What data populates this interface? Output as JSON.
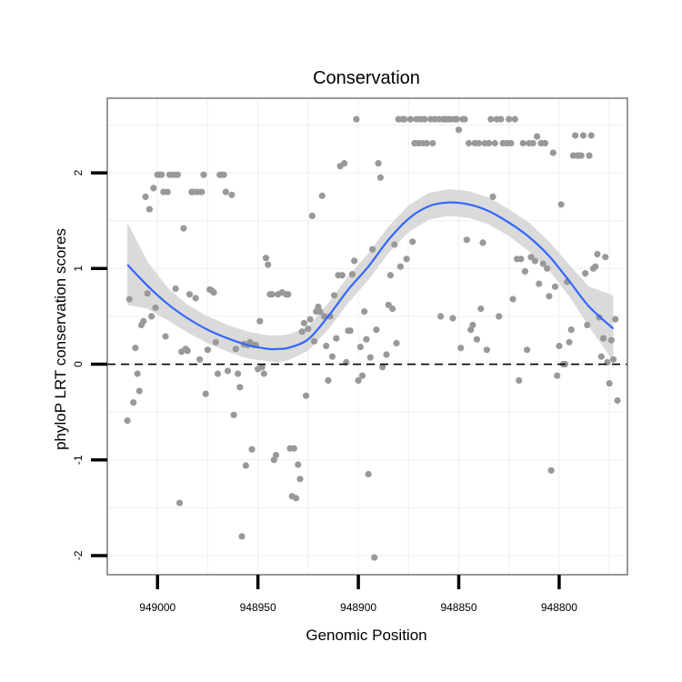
{
  "chart_data": {
    "type": "scatter",
    "title": "Conservation",
    "xlabel": "Genomic Position",
    "ylabel": "phyloP LRT conservation scores",
    "x_reversed": true,
    "xlim": [
      949025,
      948766
    ],
    "ylim": [
      -2.2,
      2.78
    ],
    "x_ticks": [
      949000,
      948950,
      948900,
      948850,
      948800
    ],
    "y_ticks": [
      -2,
      -1,
      0,
      1,
      2
    ],
    "grid": true,
    "reference_line_y": 0,
    "colors": {
      "points": "#999999",
      "smooth": "#3366ff",
      "ribbon": "#d3d3d3",
      "grid": "#f2f2f2",
      "panel_border": "#7f7f7f"
    },
    "points": [
      [
        949015,
        -0.59
      ],
      [
        949014,
        0.68
      ],
      [
        949012,
        -0.4
      ],
      [
        949011,
        0.17
      ],
      [
        949010,
        -0.1
      ],
      [
        949009,
        -0.28
      ],
      [
        949008,
        0.41
      ],
      [
        949007,
        0.45
      ],
      [
        949006,
        1.75
      ],
      [
        949005,
        0.74
      ],
      [
        949004,
        1.62
      ],
      [
        949003,
        0.5
      ],
      [
        949002,
        1.84
      ],
      [
        949001,
        0.59
      ],
      [
        949000,
        1.98
      ],
      [
        948999,
        1.98
      ],
      [
        948998,
        1.98
      ],
      [
        948997,
        1.8
      ],
      [
        948996,
        0.29
      ],
      [
        948995,
        1.8
      ],
      [
        948994,
        1.98
      ],
      [
        948992,
        1.98
      ],
      [
        948991,
        0.79
      ],
      [
        948990,
        1.98
      ],
      [
        948989,
        -1.45
      ],
      [
        948988,
        0.13
      ],
      [
        948987,
        1.42
      ],
      [
        948986,
        0.16
      ],
      [
        948985,
        0.14
      ],
      [
        948984,
        0.73
      ],
      [
        948983,
        1.8
      ],
      [
        948982,
        1.8
      ],
      [
        948981,
        0.69
      ],
      [
        948980,
        1.8
      ],
      [
        948979,
        0.05
      ],
      [
        948978,
        1.8
      ],
      [
        948977,
        1.98
      ],
      [
        948976,
        -0.31
      ],
      [
        948975,
        0.15
      ],
      [
        948974,
        0.78
      ],
      [
        948973,
        0.77
      ],
      [
        948972,
        0.75
      ],
      [
        948971,
        0.23
      ],
      [
        948970,
        -0.1
      ],
      [
        948969,
        1.98
      ],
      [
        948968,
        1.98
      ],
      [
        948967,
        1.98
      ],
      [
        948966,
        1.8
      ],
      [
        948965,
        -0.07
      ],
      [
        948963,
        1.77
      ],
      [
        948962,
        -0.53
      ],
      [
        948961,
        0.16
      ],
      [
        948960,
        -0.1
      ],
      [
        948959,
        -0.24
      ],
      [
        948958,
        -1.8
      ],
      [
        948957,
        0.21
      ],
      [
        948956,
        -1.06
      ],
      [
        948955,
        0.2
      ],
      [
        948954,
        0.23
      ],
      [
        948953,
        -0.89
      ],
      [
        948952,
        0.2
      ],
      [
        948951,
        0.2
      ],
      [
        948950,
        -0.05
      ],
      [
        948949,
        0.45
      ],
      [
        948948,
        -0.03
      ],
      [
        948947,
        -0.1
      ],
      [
        948946,
        1.11
      ],
      [
        948945,
        1.04
      ],
      [
        948944,
        0.73
      ],
      [
        948943,
        0.73
      ],
      [
        948942,
        -1.0
      ],
      [
        948941,
        -0.95
      ],
      [
        948940,
        0.73
      ],
      [
        948938,
        0.75
      ],
      [
        948936,
        0.73
      ],
      [
        948935,
        0.73
      ],
      [
        948934,
        -0.88
      ],
      [
        948933,
        -1.38
      ],
      [
        948932,
        -0.88
      ],
      [
        948931,
        -1.4
      ],
      [
        948930,
        -1.05
      ],
      [
        948929,
        -1.2
      ],
      [
        948928,
        0.34
      ],
      [
        948927,
        0.43
      ],
      [
        948926,
        -0.33
      ],
      [
        948925,
        0.37
      ],
      [
        948924,
        0.47
      ],
      [
        948923,
        1.55
      ],
      [
        948922,
        0.24
      ],
      [
        948921,
        0.55
      ],
      [
        948920,
        0.6
      ],
      [
        948919,
        0.55
      ],
      [
        948918,
        1.76
      ],
      [
        948917,
        0.5
      ],
      [
        948916,
        0.19
      ],
      [
        948915,
        -0.17
      ],
      [
        948914,
        0.5
      ],
      [
        948913,
        0.08
      ],
      [
        948912,
        0.72
      ],
      [
        948911,
        0.27
      ],
      [
        948910,
        0.93
      ],
      [
        948909,
        2.07
      ],
      [
        948908,
        0.93
      ],
      [
        948907,
        2.1
      ],
      [
        948906,
        0.02
      ],
      [
        948905,
        0.35
      ],
      [
        948904,
        0.35
      ],
      [
        948903,
        0.94
      ],
      [
        948902,
        1.08
      ],
      [
        948901,
        2.56
      ],
      [
        948900,
        -0.17
      ],
      [
        948899,
        0.18
      ],
      [
        948898,
        -0.12
      ],
      [
        948897,
        0.55
      ],
      [
        948896,
        0.26
      ],
      [
        948895,
        -1.15
      ],
      [
        948894,
        0.07
      ],
      [
        948893,
        1.2
      ],
      [
        948892,
        -2.02
      ],
      [
        948891,
        0.36
      ],
      [
        948890,
        2.1
      ],
      [
        948889,
        1.95
      ],
      [
        948888,
        -0.03
      ],
      [
        948886,
        0.1
      ],
      [
        948885,
        0.62
      ],
      [
        948884,
        0.93
      ],
      [
        948883,
        0.58
      ],
      [
        948882,
        1.25
      ],
      [
        948881,
        0.22
      ],
      [
        948880,
        2.56
      ],
      [
        948879,
        1.02
      ],
      [
        948878,
        2.56
      ],
      [
        948877,
        2.56
      ],
      [
        948876,
        1.1
      ],
      [
        948874,
        2.56
      ],
      [
        948873,
        1.28
      ],
      [
        948872,
        2.31
      ],
      [
        948871,
        2.56
      ],
      [
        948870,
        2.31
      ],
      [
        948869,
        2.56
      ],
      [
        948868,
        2.31
      ],
      [
        948867,
        2.56
      ],
      [
        948866,
        2.31
      ],
      [
        948864,
        2.56
      ],
      [
        948863,
        2.31
      ],
      [
        948862,
        2.56
      ],
      [
        948860,
        2.56
      ],
      [
        948859,
        0.5
      ],
      [
        948858,
        2.56
      ],
      [
        948857,
        2.56
      ],
      [
        948856,
        2.56
      ],
      [
        948855,
        2.56
      ],
      [
        948854,
        2.56
      ],
      [
        948853,
        0.48
      ],
      [
        948852,
        2.56
      ],
      [
        948851,
        2.56
      ],
      [
        948850,
        2.45
      ],
      [
        948849,
        0.17
      ],
      [
        948848,
        2.56
      ],
      [
        948847,
        2.56
      ],
      [
        948846,
        1.3
      ],
      [
        948845,
        2.31
      ],
      [
        948844,
        0.36
      ],
      [
        948843,
        0.41
      ],
      [
        948842,
        2.31
      ],
      [
        948841,
        0.26
      ],
      [
        948840,
        2.31
      ],
      [
        948839,
        0.58
      ],
      [
        948838,
        1.27
      ],
      [
        948837,
        2.31
      ],
      [
        948836,
        0.15
      ],
      [
        948835,
        2.31
      ],
      [
        948834,
        2.56
      ],
      [
        948833,
        1.75
      ],
      [
        948832,
        2.31
      ],
      [
        948831,
        2.56
      ],
      [
        948830,
        0.5
      ],
      [
        948829,
        2.56
      ],
      [
        948828,
        2.31
      ],
      [
        948826,
        2.31
      ],
      [
        948825,
        2.56
      ],
      [
        948824,
        2.31
      ],
      [
        948823,
        0.68
      ],
      [
        948822,
        2.56
      ],
      [
        948821,
        1.1
      ],
      [
        948820,
        -0.17
      ],
      [
        948819,
        1.1
      ],
      [
        948818,
        2.31
      ],
      [
        948817,
        0.97
      ],
      [
        948816,
        0.15
      ],
      [
        948815,
        2.31
      ],
      [
        948814,
        1.12
      ],
      [
        948813,
        2.31
      ],
      [
        948812,
        1.08
      ],
      [
        948811,
        2.38
      ],
      [
        948810,
        0.84
      ],
      [
        948809,
        2.31
      ],
      [
        948808,
        1.05
      ],
      [
        948807,
        2.31
      ],
      [
        948806,
        1.0
      ],
      [
        948805,
        0.71
      ],
      [
        948804,
        -1.11
      ],
      [
        948803,
        2.21
      ],
      [
        948802,
        0.81
      ],
      [
        948801,
        -0.12
      ],
      [
        948800,
        0.19
      ],
      [
        948799,
        1.67
      ],
      [
        948798,
        0.0
      ],
      [
        948797,
        0.0
      ],
      [
        948796,
        0.86
      ],
      [
        948795,
        0.23
      ],
      [
        948794,
        0.36
      ],
      [
        948793,
        2.18
      ],
      [
        948792,
        2.39
      ],
      [
        948791,
        2.18
      ],
      [
        948790,
        2.18
      ],
      [
        948789,
        2.18
      ],
      [
        948788,
        2.39
      ],
      [
        948787,
        0.95
      ],
      [
        948786,
        0.41
      ],
      [
        948785,
        2.18
      ],
      [
        948784,
        2.39
      ],
      [
        948783,
        1.0
      ],
      [
        948782,
        1.02
      ],
      [
        948781,
        1.15
      ],
      [
        948780,
        0.49
      ],
      [
        948779,
        0.08
      ],
      [
        948778,
        0.27
      ],
      [
        948777,
        1.12
      ],
      [
        948776,
        0.02
      ],
      [
        948775,
        -0.2
      ],
      [
        948774,
        0.25
      ],
      [
        948773,
        0.05
      ],
      [
        948772,
        0.47
      ],
      [
        948771,
        -0.38
      ]
    ],
    "smooth_fit": [
      [
        949015,
        1.04,
        0.62,
        1.48
      ],
      [
        949005,
        0.82,
        0.58,
        1.07
      ],
      [
        948995,
        0.63,
        0.46,
        0.8
      ],
      [
        948985,
        0.48,
        0.33,
        0.62
      ],
      [
        948975,
        0.36,
        0.22,
        0.5
      ],
      [
        948965,
        0.27,
        0.13,
        0.41
      ],
      [
        948955,
        0.2,
        0.06,
        0.34
      ],
      [
        948945,
        0.16,
        0.03,
        0.3
      ],
      [
        948940,
        0.16,
        0.02,
        0.3
      ],
      [
        948935,
        0.17,
        0.04,
        0.31
      ],
      [
        948925,
        0.26,
        0.14,
        0.39
      ],
      [
        948915,
        0.5,
        0.36,
        0.64
      ],
      [
        948905,
        0.78,
        0.64,
        0.92
      ],
      [
        948895,
        1.02,
        0.88,
        1.16
      ],
      [
        948885,
        1.3,
        1.16,
        1.44
      ],
      [
        948875,
        1.52,
        1.38,
        1.66
      ],
      [
        948865,
        1.65,
        1.51,
        1.79
      ],
      [
        948855,
        1.69,
        1.55,
        1.83
      ],
      [
        948845,
        1.67,
        1.53,
        1.81
      ],
      [
        948835,
        1.6,
        1.46,
        1.74
      ],
      [
        948825,
        1.48,
        1.34,
        1.62
      ],
      [
        948815,
        1.33,
        1.18,
        1.48
      ],
      [
        948805,
        1.13,
        0.98,
        1.28
      ],
      [
        948795,
        0.87,
        0.71,
        1.04
      ],
      [
        948785,
        0.6,
        0.39,
        0.81
      ],
      [
        948773,
        0.37,
        0.03,
        0.72
      ]
    ]
  }
}
